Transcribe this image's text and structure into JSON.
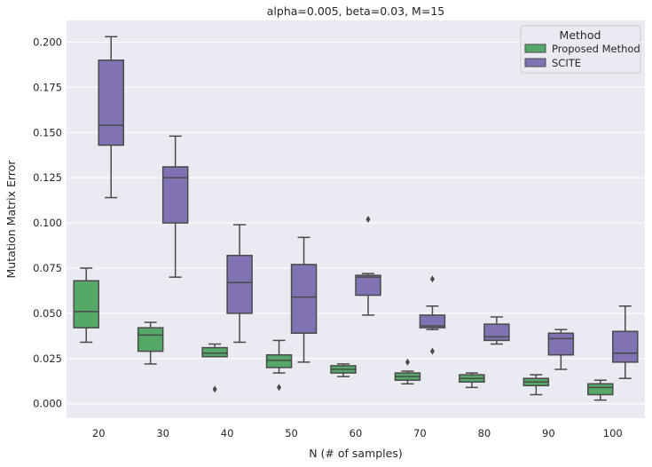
{
  "chart_data": {
    "type": "box",
    "title": "alpha=0.005, beta=0.03, M=15",
    "xlabel": "N (# of samples)",
    "ylabel": "Mutation Matrix Error",
    "categories": [
      "20",
      "30",
      "40",
      "50",
      "60",
      "70",
      "80",
      "90",
      "100"
    ],
    "ylim": [
      -0.008,
      0.212
    ],
    "yticks": [
      0.0,
      0.025,
      0.05,
      0.075,
      0.1,
      0.125,
      0.15,
      0.175,
      0.2
    ],
    "ytick_labels": [
      "0.000",
      "0.025",
      "0.050",
      "0.075",
      "0.100",
      "0.125",
      "0.150",
      "0.175",
      "0.200"
    ],
    "grid": true,
    "legend": {
      "title": "Method",
      "placement": "top-right"
    },
    "colors": {
      "background": "#eaeaf2",
      "grid": "#ffffff",
      "line": "#4a4a4a",
      "Proposed Method": "#55a868",
      "SCITE": "#8172b3"
    },
    "series": [
      {
        "name": "Proposed Method",
        "boxes": [
          {
            "whisker_low": 0.034,
            "q1": 0.042,
            "median": 0.051,
            "q3": 0.068,
            "whisker_high": 0.075,
            "outliers": []
          },
          {
            "whisker_low": 0.022,
            "q1": 0.029,
            "median": 0.038,
            "q3": 0.042,
            "whisker_high": 0.045,
            "outliers": []
          },
          {
            "whisker_low": 0.026,
            "q1": 0.026,
            "median": 0.028,
            "q3": 0.031,
            "whisker_high": 0.033,
            "outliers": [
              0.008
            ]
          },
          {
            "whisker_low": 0.017,
            "q1": 0.02,
            "median": 0.024,
            "q3": 0.027,
            "whisker_high": 0.035,
            "outliers": [
              0.009
            ]
          },
          {
            "whisker_low": 0.015,
            "q1": 0.017,
            "median": 0.019,
            "q3": 0.021,
            "whisker_high": 0.022,
            "outliers": []
          },
          {
            "whisker_low": 0.011,
            "q1": 0.013,
            "median": 0.015,
            "q3": 0.017,
            "whisker_high": 0.018,
            "outliers": [
              0.023
            ]
          },
          {
            "whisker_low": 0.009,
            "q1": 0.012,
            "median": 0.014,
            "q3": 0.016,
            "whisker_high": 0.017,
            "outliers": []
          },
          {
            "whisker_low": 0.005,
            "q1": 0.01,
            "median": 0.012,
            "q3": 0.014,
            "whisker_high": 0.016,
            "outliers": []
          },
          {
            "whisker_low": 0.002,
            "q1": 0.005,
            "median": 0.009,
            "q3": 0.011,
            "whisker_high": 0.013,
            "outliers": []
          }
        ]
      },
      {
        "name": "SCITE",
        "boxes": [
          {
            "whisker_low": 0.114,
            "q1": 0.143,
            "median": 0.154,
            "q3": 0.19,
            "whisker_high": 0.203,
            "outliers": []
          },
          {
            "whisker_low": 0.07,
            "q1": 0.1,
            "median": 0.125,
            "q3": 0.131,
            "whisker_high": 0.148,
            "outliers": []
          },
          {
            "whisker_low": 0.034,
            "q1": 0.05,
            "median": 0.067,
            "q3": 0.082,
            "whisker_high": 0.099,
            "outliers": []
          },
          {
            "whisker_low": 0.023,
            "q1": 0.039,
            "median": 0.059,
            "q3": 0.077,
            "whisker_high": 0.092,
            "outliers": []
          },
          {
            "whisker_low": 0.049,
            "q1": 0.06,
            "median": 0.07,
            "q3": 0.071,
            "whisker_high": 0.072,
            "outliers": [
              0.102
            ]
          },
          {
            "whisker_low": 0.041,
            "q1": 0.042,
            "median": 0.043,
            "q3": 0.049,
            "whisker_high": 0.054,
            "outliers": [
              0.069,
              0.029
            ]
          },
          {
            "whisker_low": 0.033,
            "q1": 0.035,
            "median": 0.037,
            "q3": 0.044,
            "whisker_high": 0.048,
            "outliers": []
          },
          {
            "whisker_low": 0.019,
            "q1": 0.027,
            "median": 0.036,
            "q3": 0.039,
            "whisker_high": 0.041,
            "outliers": []
          },
          {
            "whisker_low": 0.014,
            "q1": 0.023,
            "median": 0.028,
            "q3": 0.04,
            "whisker_high": 0.054,
            "outliers": []
          }
        ]
      }
    ]
  }
}
